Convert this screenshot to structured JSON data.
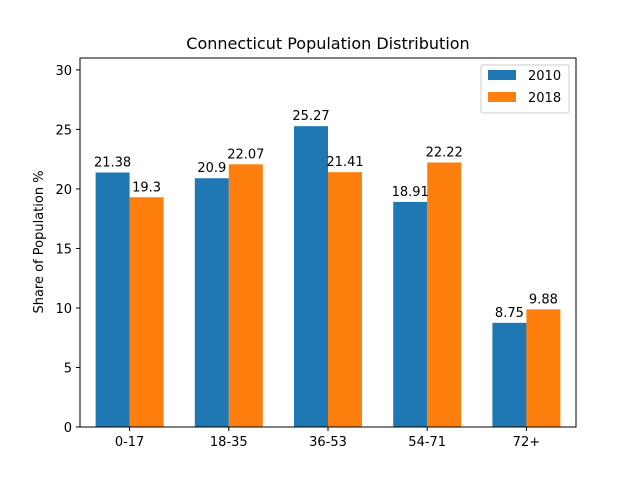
{
  "chart_data": {
    "type": "bar",
    "title": "Connecticut Population Distribution",
    "xlabel": "",
    "ylabel": "Share of Population %",
    "categories": [
      "0-17",
      "18-35",
      "36-53",
      "54-71",
      "72+"
    ],
    "series": [
      {
        "name": "2010",
        "color": "#1f77b4",
        "values": [
          21.38,
          20.9,
          25.27,
          18.91,
          8.75
        ]
      },
      {
        "name": "2018",
        "color": "#ff7f0e",
        "values": [
          19.3,
          22.07,
          21.41,
          22.22,
          9.88
        ]
      }
    ],
    "ylim": [
      0,
      31
    ],
    "yticks": [
      0,
      5,
      10,
      15,
      20,
      25,
      30
    ],
    "grid": false,
    "legend_position": "top-right"
  }
}
